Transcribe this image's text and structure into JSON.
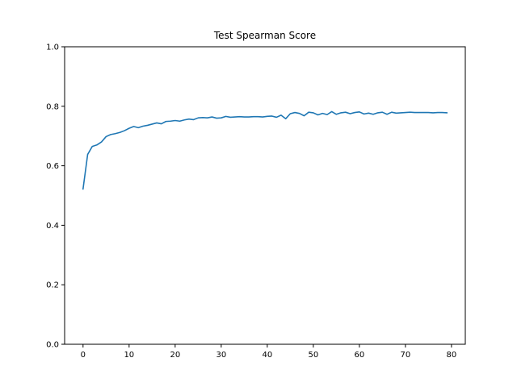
{
  "chart_data": {
    "type": "line",
    "title": "Test Spearman Score",
    "xlabel": "",
    "ylabel": "",
    "xlim": [
      -4,
      83
    ],
    "ylim": [
      0.0,
      1.0
    ],
    "xticks": [
      0,
      10,
      20,
      30,
      40,
      50,
      60,
      70,
      80
    ],
    "xtick_labels": [
      "0",
      "10",
      "20",
      "30",
      "40",
      "50",
      "60",
      "70",
      "80"
    ],
    "yticks": [
      0.0,
      0.2,
      0.4,
      0.6,
      0.8,
      1.0
    ],
    "ytick_labels": [
      "0.0",
      "0.2",
      "0.4",
      "0.6",
      "0.8",
      "1.0"
    ],
    "grid": false,
    "series": [
      {
        "color": "#1f77b4",
        "x": [
          0,
          1,
          2,
          3,
          4,
          5,
          6,
          7,
          8,
          9,
          10,
          11,
          12,
          13,
          14,
          15,
          16,
          17,
          18,
          19,
          20,
          21,
          22,
          23,
          24,
          25,
          26,
          27,
          28,
          29,
          30,
          31,
          32,
          33,
          34,
          35,
          36,
          37,
          38,
          39,
          40,
          41,
          42,
          43,
          44,
          45,
          46,
          47,
          48,
          49,
          50,
          51,
          52,
          53,
          54,
          55,
          56,
          57,
          58,
          59,
          60,
          61,
          62,
          63,
          64,
          65,
          66,
          67,
          68,
          69,
          70,
          71,
          72,
          73,
          74,
          75,
          76,
          77,
          78,
          79
        ],
        "y": [
          0.522,
          0.638,
          0.665,
          0.67,
          0.68,
          0.698,
          0.705,
          0.708,
          0.712,
          0.718,
          0.726,
          0.732,
          0.728,
          0.733,
          0.736,
          0.74,
          0.744,
          0.741,
          0.749,
          0.75,
          0.752,
          0.75,
          0.754,
          0.757,
          0.755,
          0.761,
          0.762,
          0.761,
          0.764,
          0.76,
          0.761,
          0.766,
          0.763,
          0.764,
          0.765,
          0.764,
          0.764,
          0.765,
          0.765,
          0.764,
          0.766,
          0.767,
          0.763,
          0.77,
          0.758,
          0.775,
          0.779,
          0.776,
          0.768,
          0.78,
          0.778,
          0.771,
          0.776,
          0.772,
          0.782,
          0.773,
          0.778,
          0.78,
          0.775,
          0.779,
          0.781,
          0.774,
          0.777,
          0.773,
          0.778,
          0.78,
          0.773,
          0.78,
          0.777,
          0.778,
          0.779,
          0.78,
          0.779,
          0.779,
          0.779,
          0.779,
          0.778,
          0.779,
          0.779,
          0.778
        ]
      }
    ]
  }
}
